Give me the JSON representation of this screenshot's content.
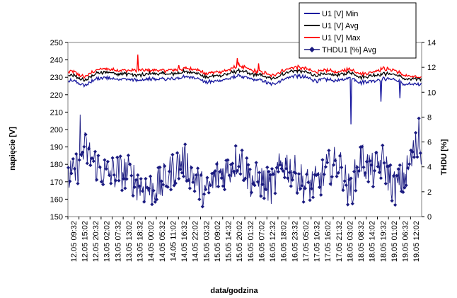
{
  "chart_data": {
    "type": "line",
    "ylabel": "napięcie [V]",
    "y2label": "THDU [%]",
    "xlabel": "data/godzina",
    "ylim": [
      150,
      250
    ],
    "y2lim": [
      0,
      14
    ],
    "yticks": [
      150,
      160,
      170,
      180,
      190,
      200,
      210,
      220,
      230,
      240,
      250
    ],
    "y2ticks": [
      0,
      2,
      4,
      6,
      8,
      10,
      12,
      14
    ],
    "categories": [
      "12.05 09:32",
      "12.05 15:02",
      "12.05 20:32",
      "13.05 02:02",
      "13.05 07:32",
      "13.05 13:02",
      "13.05 18:32",
      "14.05 00:02",
      "14.05 05:32",
      "14.05 11:02",
      "14.05 16:32",
      "14.05 22:02",
      "15.05 03:32",
      "15.05 09:02",
      "15.05 14:32",
      "15.05 20:02",
      "16.05 01:32",
      "16.05 07:02",
      "16.05 12:32",
      "16.05 18:02",
      "16.05 23:32",
      "17.05 05:02",
      "17.05 10:32",
      "17.05 16:02",
      "17.05 21:32",
      "18.05 03:02",
      "18.05 08:32",
      "18.05 14:02",
      "18.05 19:32",
      "19.05 01:02",
      "19.05 06:32",
      "19.05 12:02"
    ],
    "legend": {
      "position": "top-right"
    },
    "series": [
      {
        "name": "U1 [V] Min",
        "axis": "left",
        "color": "#1a1aa0",
        "values": [
          228,
          225,
          229,
          230,
          229,
          229,
          228,
          229,
          229,
          229,
          230,
          230,
          227,
          228,
          229,
          231,
          229,
          228,
          226,
          229,
          231,
          230,
          228,
          229,
          228,
          230,
          227,
          228,
          229,
          229,
          226,
          226
        ],
        "dips": [
          {
            "at": 25.6,
            "value": 203
          },
          {
            "at": 28.3,
            "value": 216
          },
          {
            "at": 30.0,
            "value": 218
          }
        ]
      },
      {
        "name": "U1 [V] Avg",
        "axis": "left",
        "color": "#000000",
        "values": [
          231,
          228,
          232,
          233,
          232,
          232,
          231,
          232,
          232,
          232,
          233,
          233,
          230,
          231,
          232,
          234,
          232,
          231,
          229,
          232,
          234,
          233,
          231,
          232,
          231,
          233,
          230,
          231,
          232,
          232,
          229,
          229
        ]
      },
      {
        "name": "U1 [V] Max",
        "axis": "left",
        "color": "#ff0000",
        "values": [
          233,
          230,
          234,
          235,
          234,
          234,
          234,
          234,
          234,
          234,
          235,
          235,
          232,
          233,
          234,
          237,
          234,
          233,
          231,
          234,
          236,
          235,
          233,
          234,
          233,
          235,
          232,
          233,
          235,
          234,
          231,
          230
        ],
        "spikes": [
          {
            "at": 6.3,
            "value": 243
          },
          {
            "at": 10.0,
            "value": 237
          },
          {
            "at": 15.3,
            "value": 241
          },
          {
            "at": 17.2,
            "value": 238
          }
        ]
      },
      {
        "name": "THDU1 [%] Avg",
        "axis": "right",
        "color": "#1a1a80",
        "marker": "diamond",
        "values": [
          3.2,
          5.5,
          4.2,
          3.4,
          3.6,
          3.5,
          2.5,
          2.2,
          2.6,
          3.8,
          4.5,
          3.0,
          1.8,
          3.3,
          3.8,
          4.8,
          3.0,
          2.8,
          2.4,
          4.4,
          3.5,
          2.5,
          2.6,
          3.8,
          4.4,
          1.8,
          4.7,
          3.6,
          4.4,
          2.3,
          3.2,
          5.6
        ],
        "peaks": [
          {
            "at": 1.1,
            "value": 8.2
          },
          {
            "at": 31.7,
            "value": 7.9
          }
        ]
      }
    ]
  }
}
